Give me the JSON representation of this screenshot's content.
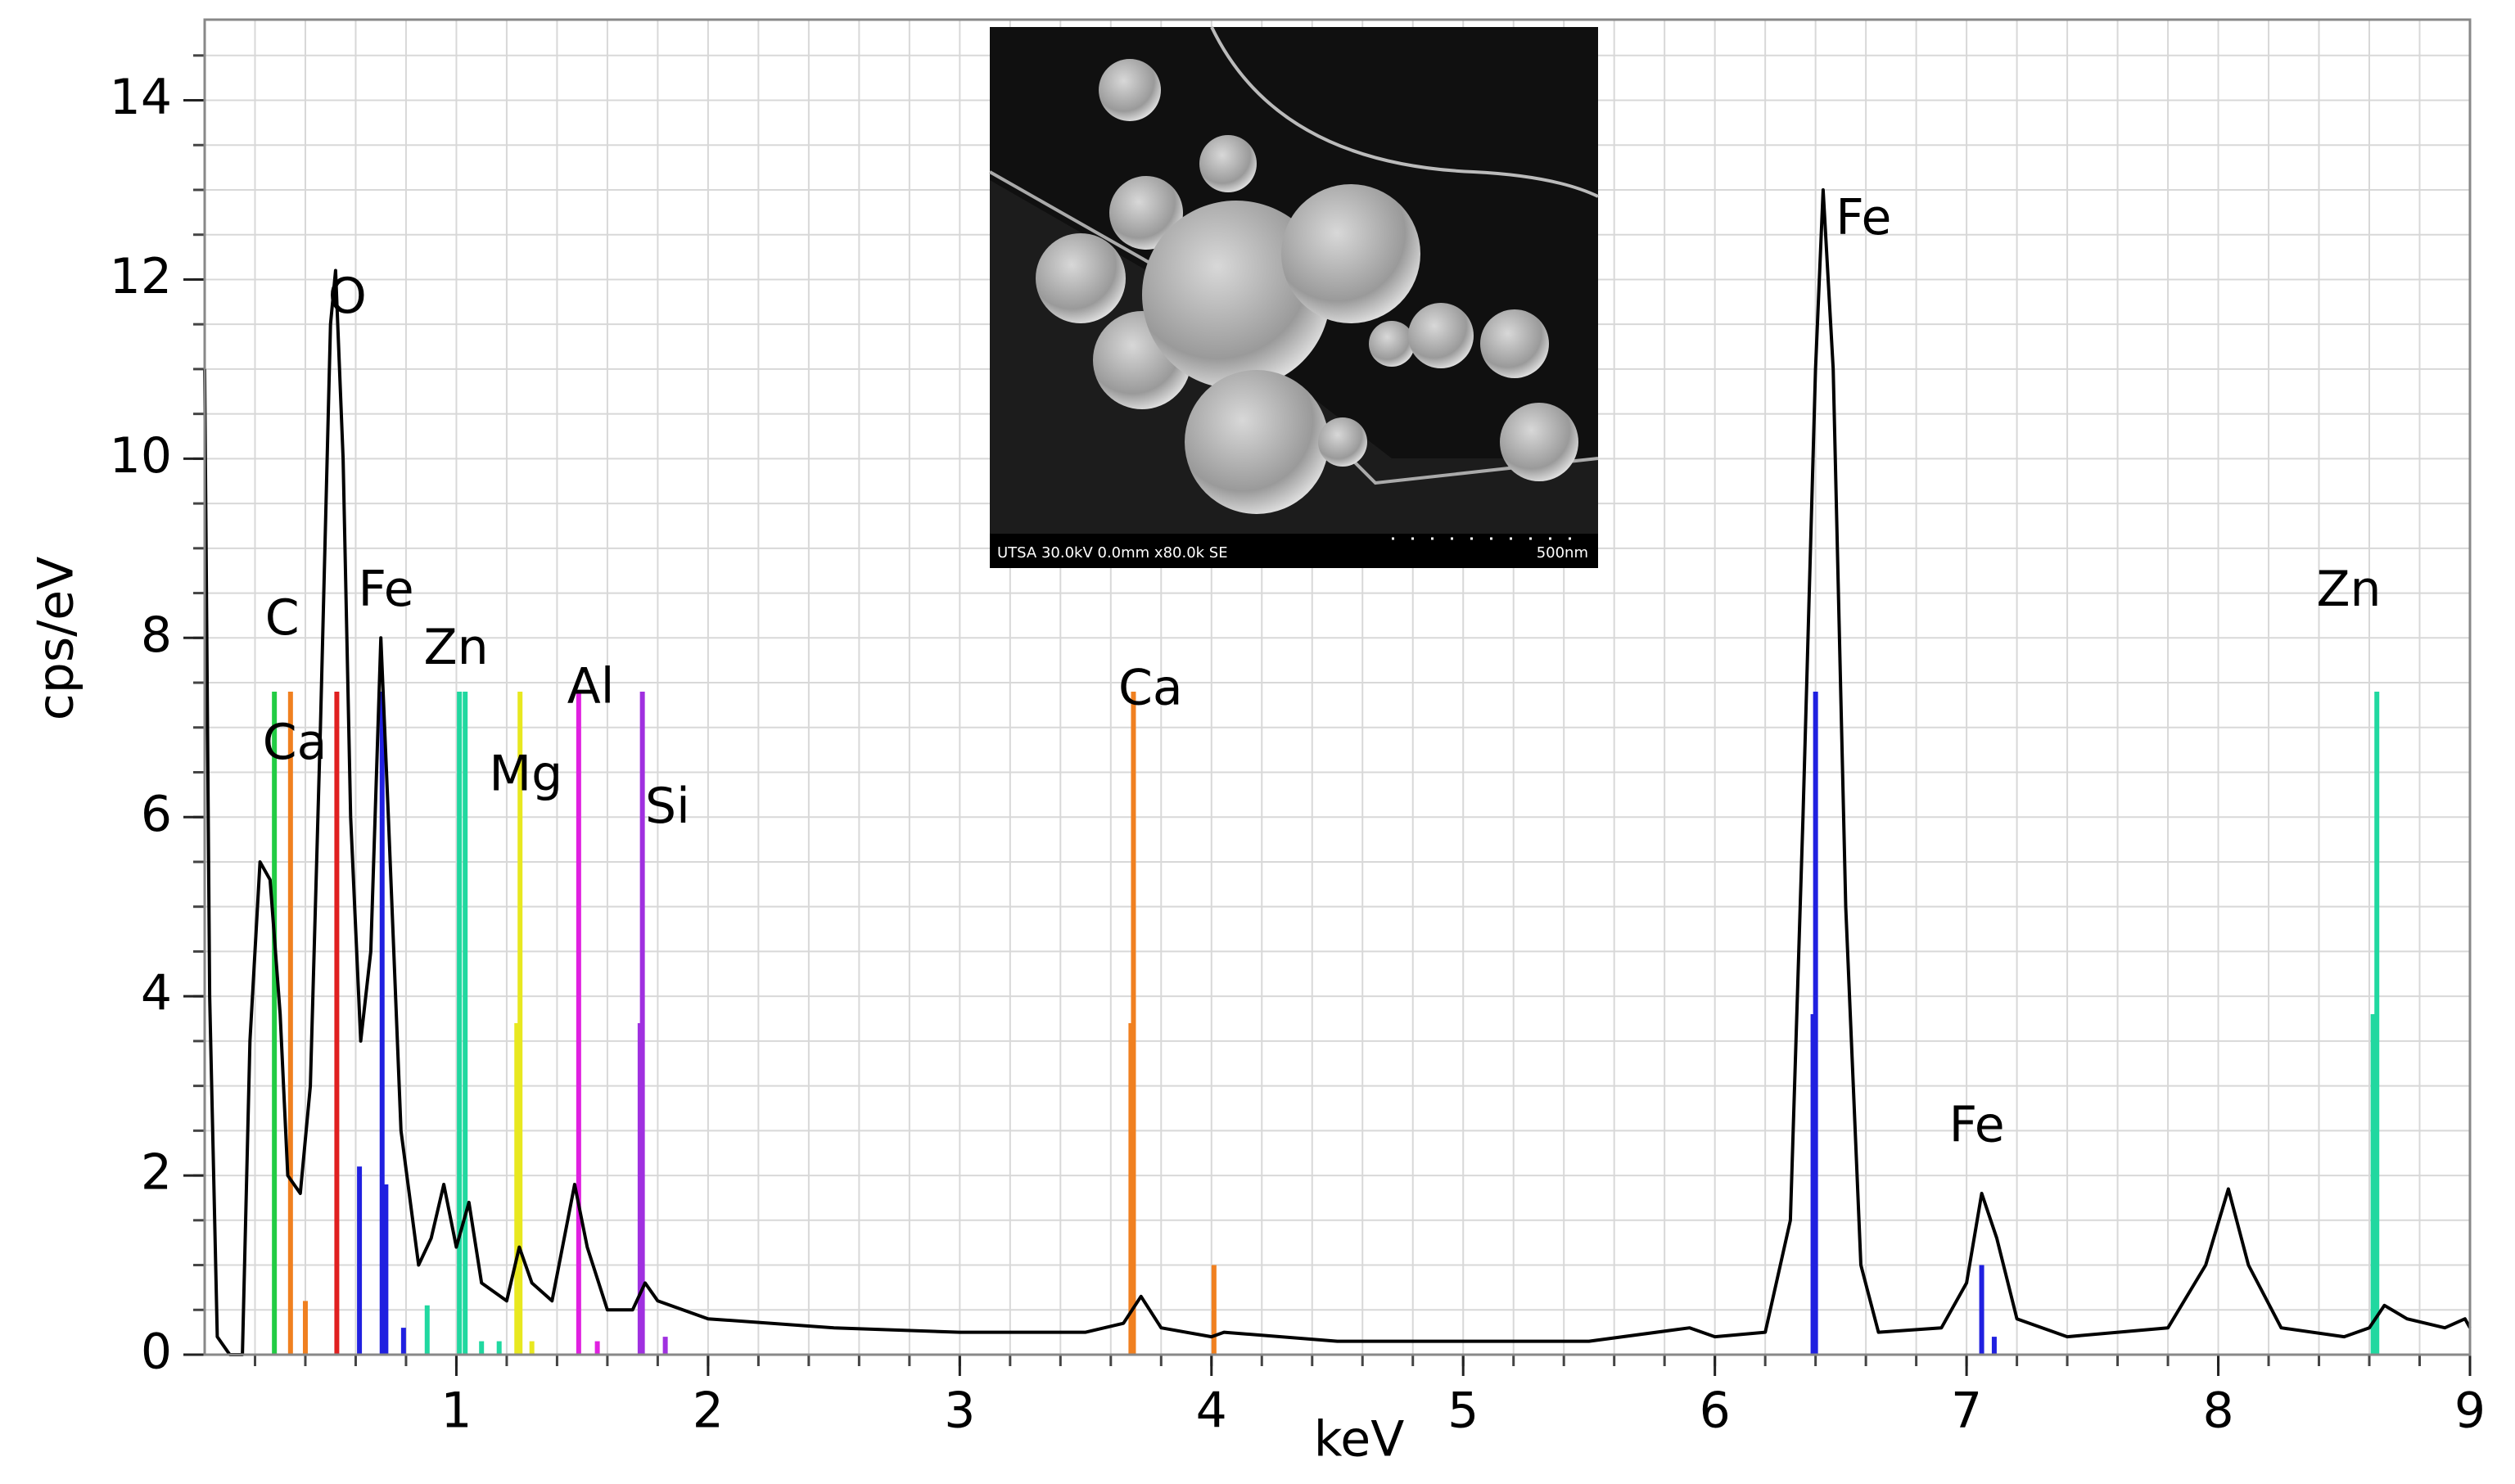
{
  "chart_data": {
    "type": "line",
    "xlabel": "keV",
    "ylabel": "cps/eV",
    "xlim": [
      0,
      9
    ],
    "ylim": [
      0,
      14.9
    ],
    "xticks": [
      1,
      2,
      3,
      4,
      5,
      6,
      7,
      8,
      9
    ],
    "yticks": [
      0,
      2,
      4,
      6,
      8,
      10,
      12,
      14
    ],
    "grid": true,
    "xgrid": [
      0.2,
      0.4,
      0.6,
      0.8,
      1,
      1.2,
      1.4,
      1.6,
      1.8,
      2,
      2.2,
      2.4,
      2.6,
      2.8,
      3,
      3.2,
      3.4,
      3.6,
      3.8,
      4,
      4.2,
      4.4,
      4.6,
      4.8,
      5,
      5.2,
      5.4,
      5.6,
      5.8,
      6,
      6.2,
      6.4,
      6.6,
      6.8,
      7,
      7.2,
      7.4,
      7.6,
      7.8,
      8,
      8.2,
      8.4,
      8.6,
      8.8
    ],
    "ygrid": [
      0.5,
      1,
      1.5,
      2,
      2.5,
      3,
      3.5,
      4,
      4.5,
      5,
      5.5,
      6,
      6.5,
      7,
      7.5,
      8,
      8.5,
      9,
      9.5,
      10,
      10.5,
      11,
      11.5,
      12,
      12.5,
      13,
      13.5,
      14,
      14.5
    ],
    "series": [
      {
        "color": "#000000",
        "x": [
          0,
          0.02,
          0.05,
          0.1,
          0.15,
          0.18,
          0.22,
          0.26,
          0.3,
          0.33,
          0.38,
          0.42,
          0.46,
          0.5,
          0.52,
          0.55,
          0.58,
          0.62,
          0.66,
          0.7,
          0.73,
          0.78,
          0.85,
          0.9,
          0.95,
          1,
          1.05,
          1.1,
          1.2,
          1.25,
          1.3,
          1.38,
          1.47,
          1.52,
          1.6,
          1.7,
          1.75,
          1.8,
          2,
          2.5,
          3,
          3.5,
          3.65,
          3.72,
          3.8,
          4,
          4.05,
          4.5,
          5,
          5.5,
          5.9,
          6,
          6.2,
          6.3,
          6.35,
          6.4,
          6.43,
          6.47,
          6.52,
          6.58,
          6.65,
          6.9,
          7,
          7.06,
          7.12,
          7.2,
          7.4,
          7.8,
          7.95,
          8.04,
          8.12,
          8.25,
          8.5,
          8.6,
          8.66,
          8.75,
          8.9,
          8.98,
          9
        ],
        "values": [
          11,
          4,
          0.2,
          0,
          0,
          3.5,
          5.5,
          5.3,
          3.8,
          2,
          1.8,
          3,
          7,
          11.5,
          12.1,
          10,
          6,
          3.5,
          4.5,
          8,
          6,
          2.5,
          1,
          1.3,
          1.9,
          1.2,
          1.7,
          0.8,
          0.6,
          1.2,
          0.8,
          0.6,
          1.9,
          1.2,
          0.5,
          0.5,
          0.8,
          0.6,
          0.4,
          0.3,
          0.25,
          0.25,
          0.35,
          0.65,
          0.3,
          0.2,
          0.25,
          0.15,
          0.15,
          0.15,
          0.3,
          0.2,
          0.25,
          1.5,
          6,
          11,
          13,
          11,
          5,
          1,
          0.25,
          0.3,
          0.8,
          1.8,
          1.3,
          0.4,
          0.2,
          0.3,
          1,
          1.85,
          1,
          0.3,
          0.2,
          0.3,
          0.55,
          0.4,
          0.3,
          0.4,
          0.3
        ]
      }
    ],
    "lines": [
      {
        "color": "#22cc44",
        "x": [
          0.277
        ],
        "values": [
          7.4
        ]
      },
      {
        "color": "#f08020",
        "x": [
          0.341,
          0.4,
          3.69,
          3.68,
          4.01
        ],
        "values": [
          7.4,
          0.6,
          7.4,
          3.7,
          1.0
        ]
      },
      {
        "color": "#e02020",
        "x": [
          0.525
        ],
        "values": [
          7.4
        ]
      },
      {
        "color": "#2020e0",
        "x": [
          0.615,
          0.705,
          0.72,
          0.79,
          6.4,
          6.39,
          7.06,
          7.11
        ],
        "values": [
          2.1,
          7.4,
          1.9,
          0.3,
          7.4,
          3.8,
          1.0,
          0.2
        ]
      },
      {
        "color": "#20d8a0",
        "x": [
          0.884,
          1.012,
          1.035,
          1.1,
          1.17,
          8.63,
          8.615
        ],
        "values": [
          0.55,
          7.4,
          7.4,
          0.15,
          0.15,
          7.4,
          3.8
        ]
      },
      {
        "color": "#e8e820",
        "x": [
          1.253,
          1.24,
          1.3
        ],
        "values": [
          7.4,
          3.7,
          0.15
        ]
      },
      {
        "color": "#e020e0",
        "x": [
          1.486,
          1.56
        ],
        "values": [
          7.4,
          0.15
        ]
      },
      {
        "color": "#a030e0",
        "x": [
          1.739,
          1.73,
          1.83
        ],
        "values": [
          7.4,
          3.7,
          0.2
        ]
      }
    ],
    "annotations": [
      {
        "text": "C",
        "x": 0.24,
        "y": 8.19
      },
      {
        "text": "Ca",
        "x": 0.23,
        "y": 6.8
      },
      {
        "text": "O",
        "x": 0.49,
        "y": 11.78
      },
      {
        "text": "Fe",
        "x": 0.61,
        "y": 8.51
      },
      {
        "text": "Zn",
        "x": 0.87,
        "y": 7.86
      },
      {
        "text": "Mg",
        "x": 1.13,
        "y": 6.45
      },
      {
        "text": "Al",
        "x": 1.44,
        "y": 7.43
      },
      {
        "text": "Si",
        "x": 1.75,
        "y": 6.09
      },
      {
        "text": "Ca",
        "x": 3.63,
        "y": 7.41
      },
      {
        "text": "Fe",
        "x": 6.48,
        "y": 12.66
      },
      {
        "text": "Fe",
        "x": 6.93,
        "y": 2.53
      },
      {
        "text": "Zn",
        "x": 8.39,
        "y": 8.51
      }
    ],
    "inset": {
      "caption": "UTSA 30.0kV 0.0mm x80.0k SE",
      "scale": "500nm"
    }
  }
}
